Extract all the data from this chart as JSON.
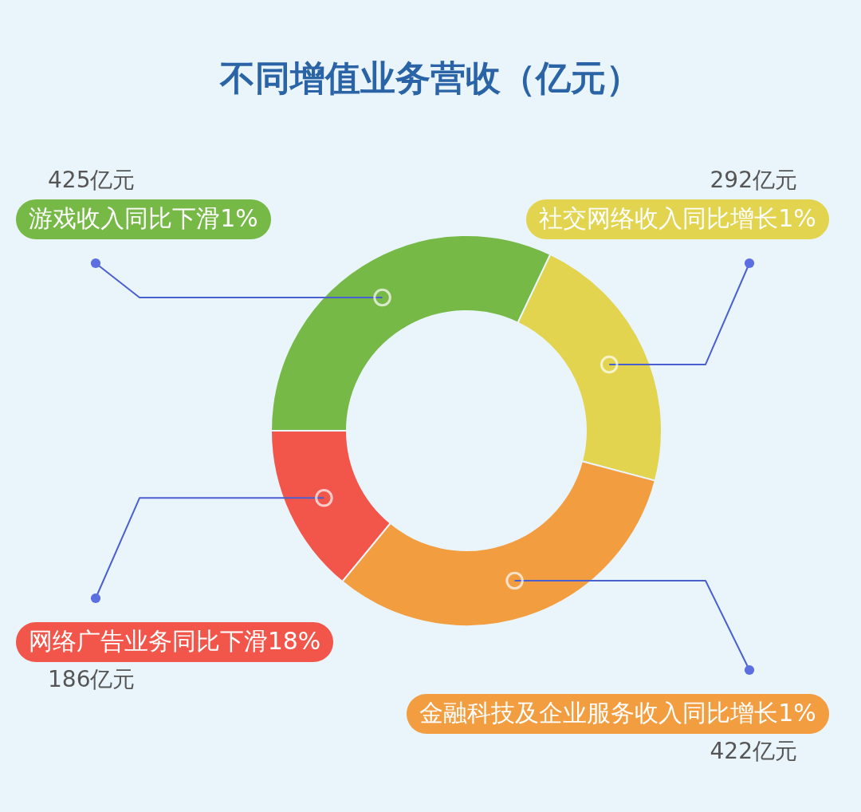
{
  "chart_data": {
    "type": "donut",
    "title": "不同增值业务营收（亿元）",
    "categories": [
      "游戏收入同比下滑1%",
      "社交网络收入同比增长1%",
      "金融科技及企业服务收入同比增长1%",
      "网络广告业务同比下滑18%"
    ],
    "values": [
      425,
      292,
      422,
      186
    ],
    "colors": [
      "#76b947",
      "#e3d44f",
      "#f29d40",
      "#f2564b"
    ],
    "value_labels": [
      "425亿元",
      "292亿元",
      "422亿元",
      "186亿元"
    ]
  }
}
